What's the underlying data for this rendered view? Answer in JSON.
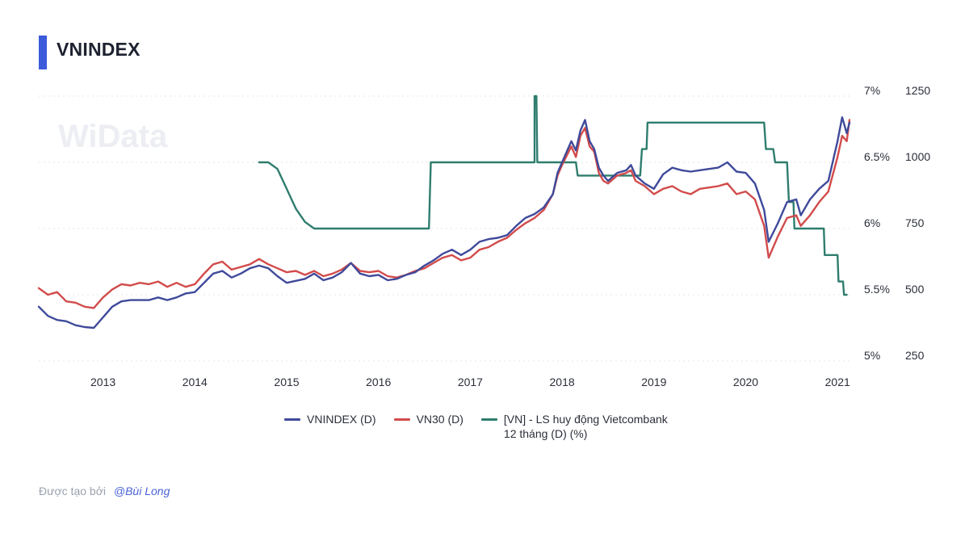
{
  "header": {
    "title": "VNINDEX",
    "accent": "#3b5bdb"
  },
  "watermark": {
    "text": "WiData"
  },
  "footer": {
    "prefix": "Được tạo bởi",
    "author": "@Bùi Long"
  },
  "chart_data": {
    "type": "line",
    "title": "VNINDEX",
    "x_ticks": [
      "2013",
      "2014",
      "2015",
      "2016",
      "2017",
      "2018",
      "2019",
      "2020",
      "2021"
    ],
    "x_range": [
      2012.3,
      2021.13
    ],
    "y_left_axis": {
      "ticks": [
        "7%",
        "6.5%",
        "6%",
        "5.5%",
        "5%"
      ],
      "range": [
        5,
        7
      ]
    },
    "y_right_axis": {
      "ticks": [
        "1250",
        "1000",
        "750",
        "500",
        "250"
      ],
      "range": [
        250,
        1250
      ]
    },
    "grid": "horizontal-dashed",
    "legend_position": "bottom",
    "series": [
      {
        "name": "VNINDEX (D)",
        "axis": "right",
        "color": "#3f4a9a",
        "points": [
          [
            2012.3,
            455
          ],
          [
            2012.4,
            420
          ],
          [
            2012.5,
            405
          ],
          [
            2012.6,
            400
          ],
          [
            2012.7,
            385
          ],
          [
            2012.8,
            378
          ],
          [
            2012.9,
            375
          ],
          [
            2013.0,
            415
          ],
          [
            2013.1,
            455
          ],
          [
            2013.2,
            475
          ],
          [
            2013.3,
            480
          ],
          [
            2013.5,
            480
          ],
          [
            2013.6,
            490
          ],
          [
            2013.7,
            480
          ],
          [
            2013.8,
            490
          ],
          [
            2013.9,
            505
          ],
          [
            2014.0,
            510
          ],
          [
            2014.1,
            545
          ],
          [
            2014.2,
            580
          ],
          [
            2014.3,
            590
          ],
          [
            2014.4,
            565
          ],
          [
            2014.5,
            580
          ],
          [
            2014.6,
            600
          ],
          [
            2014.7,
            610
          ],
          [
            2014.8,
            600
          ],
          [
            2014.9,
            570
          ],
          [
            2015.0,
            545
          ],
          [
            2015.2,
            560
          ],
          [
            2015.3,
            580
          ],
          [
            2015.4,
            555
          ],
          [
            2015.5,
            565
          ],
          [
            2015.6,
            585
          ],
          [
            2015.7,
            620
          ],
          [
            2015.8,
            580
          ],
          [
            2015.9,
            570
          ],
          [
            2016.0,
            575
          ],
          [
            2016.1,
            555
          ],
          [
            2016.2,
            560
          ],
          [
            2016.3,
            575
          ],
          [
            2016.4,
            585
          ],
          [
            2016.5,
            610
          ],
          [
            2016.6,
            630
          ],
          [
            2016.7,
            655
          ],
          [
            2016.8,
            670
          ],
          [
            2016.9,
            650
          ],
          [
            2017.0,
            670
          ],
          [
            2017.1,
            700
          ],
          [
            2017.2,
            710
          ],
          [
            2017.3,
            715
          ],
          [
            2017.4,
            725
          ],
          [
            2017.5,
            760
          ],
          [
            2017.6,
            790
          ],
          [
            2017.7,
            805
          ],
          [
            2017.8,
            830
          ],
          [
            2017.9,
            880
          ],
          [
            2017.95,
            960
          ],
          [
            2018.0,
            1000
          ],
          [
            2018.1,
            1080
          ],
          [
            2018.15,
            1045
          ],
          [
            2018.2,
            1120
          ],
          [
            2018.25,
            1160
          ],
          [
            2018.3,
            1080
          ],
          [
            2018.35,
            1050
          ],
          [
            2018.4,
            980
          ],
          [
            2018.45,
            950
          ],
          [
            2018.5,
            930
          ],
          [
            2018.6,
            960
          ],
          [
            2018.7,
            970
          ],
          [
            2018.75,
            990
          ],
          [
            2018.8,
            950
          ],
          [
            2018.9,
            920
          ],
          [
            2019.0,
            900
          ],
          [
            2019.1,
            955
          ],
          [
            2019.2,
            980
          ],
          [
            2019.3,
            970
          ],
          [
            2019.4,
            965
          ],
          [
            2019.5,
            970
          ],
          [
            2019.6,
            975
          ],
          [
            2019.7,
            980
          ],
          [
            2019.8,
            1000
          ],
          [
            2019.9,
            965
          ],
          [
            2020.0,
            960
          ],
          [
            2020.1,
            920
          ],
          [
            2020.2,
            820
          ],
          [
            2020.25,
            700
          ],
          [
            2020.35,
            770
          ],
          [
            2020.45,
            850
          ],
          [
            2020.55,
            860
          ],
          [
            2020.6,
            800
          ],
          [
            2020.7,
            860
          ],
          [
            2020.8,
            900
          ],
          [
            2020.9,
            930
          ],
          [
            2021.0,
            1080
          ],
          [
            2021.05,
            1170
          ],
          [
            2021.1,
            1110
          ],
          [
            2021.13,
            1150
          ]
        ]
      },
      {
        "name": "VN30 (D)",
        "axis": "right",
        "color": "#d24b4b",
        "points": [
          [
            2012.3,
            525
          ],
          [
            2012.4,
            500
          ],
          [
            2012.5,
            510
          ],
          [
            2012.6,
            475
          ],
          [
            2012.7,
            470
          ],
          [
            2012.8,
            455
          ],
          [
            2012.9,
            450
          ],
          [
            2013.0,
            490
          ],
          [
            2013.1,
            520
          ],
          [
            2013.2,
            540
          ],
          [
            2013.3,
            535
          ],
          [
            2013.4,
            545
          ],
          [
            2013.5,
            540
          ],
          [
            2013.6,
            550
          ],
          [
            2013.7,
            530
          ],
          [
            2013.8,
            545
          ],
          [
            2013.9,
            530
          ],
          [
            2014.0,
            540
          ],
          [
            2014.1,
            580
          ],
          [
            2014.2,
            615
          ],
          [
            2014.3,
            625
          ],
          [
            2014.4,
            595
          ],
          [
            2014.5,
            605
          ],
          [
            2014.6,
            615
          ],
          [
            2014.7,
            635
          ],
          [
            2014.8,
            615
          ],
          [
            2014.9,
            600
          ],
          [
            2015.0,
            585
          ],
          [
            2015.1,
            590
          ],
          [
            2015.2,
            575
          ],
          [
            2015.3,
            590
          ],
          [
            2015.4,
            570
          ],
          [
            2015.5,
            580
          ],
          [
            2015.6,
            595
          ],
          [
            2015.7,
            620
          ],
          [
            2015.8,
            590
          ],
          [
            2015.9,
            585
          ],
          [
            2016.0,
            590
          ],
          [
            2016.1,
            570
          ],
          [
            2016.2,
            565
          ],
          [
            2016.3,
            575
          ],
          [
            2016.4,
            590
          ],
          [
            2016.5,
            600
          ],
          [
            2016.6,
            620
          ],
          [
            2016.7,
            640
          ],
          [
            2016.8,
            650
          ],
          [
            2016.9,
            630
          ],
          [
            2017.0,
            640
          ],
          [
            2017.1,
            670
          ],
          [
            2017.2,
            680
          ],
          [
            2017.3,
            700
          ],
          [
            2017.4,
            715
          ],
          [
            2017.5,
            745
          ],
          [
            2017.6,
            770
          ],
          [
            2017.7,
            790
          ],
          [
            2017.8,
            820
          ],
          [
            2017.9,
            880
          ],
          [
            2017.95,
            950
          ],
          [
            2018.0,
            990
          ],
          [
            2018.1,
            1060
          ],
          [
            2018.15,
            1020
          ],
          [
            2018.2,
            1100
          ],
          [
            2018.25,
            1130
          ],
          [
            2018.3,
            1060
          ],
          [
            2018.35,
            1040
          ],
          [
            2018.4,
            960
          ],
          [
            2018.45,
            930
          ],
          [
            2018.5,
            920
          ],
          [
            2018.6,
            950
          ],
          [
            2018.7,
            960
          ],
          [
            2018.75,
            970
          ],
          [
            2018.8,
            930
          ],
          [
            2018.9,
            910
          ],
          [
            2019.0,
            880
          ],
          [
            2019.1,
            900
          ],
          [
            2019.2,
            910
          ],
          [
            2019.3,
            890
          ],
          [
            2019.4,
            880
          ],
          [
            2019.5,
            900
          ],
          [
            2019.6,
            905
          ],
          [
            2019.7,
            910
          ],
          [
            2019.8,
            920
          ],
          [
            2019.9,
            880
          ],
          [
            2020.0,
            890
          ],
          [
            2020.1,
            860
          ],
          [
            2020.2,
            760
          ],
          [
            2020.25,
            640
          ],
          [
            2020.35,
            720
          ],
          [
            2020.45,
            790
          ],
          [
            2020.55,
            800
          ],
          [
            2020.6,
            760
          ],
          [
            2020.7,
            800
          ],
          [
            2020.8,
            850
          ],
          [
            2020.9,
            890
          ],
          [
            2021.0,
            1020
          ],
          [
            2021.05,
            1100
          ],
          [
            2021.1,
            1080
          ],
          [
            2021.13,
            1160
          ]
        ]
      },
      {
        "name": "[VN] - LS huy động Vietcombank 12 tháng (D) (%)",
        "axis": "left",
        "color": "#2f7d6e",
        "points": [
          [
            2014.7,
            6.5
          ],
          [
            2014.8,
            6.5
          ],
          [
            2014.9,
            6.45
          ],
          [
            2015.0,
            6.3
          ],
          [
            2015.1,
            6.15
          ],
          [
            2015.2,
            6.05
          ],
          [
            2015.3,
            6.0
          ],
          [
            2016.5,
            6.0
          ],
          [
            2016.55,
            6.0
          ],
          [
            2016.57,
            6.5
          ],
          [
            2017.7,
            6.5
          ],
          [
            2017.7,
            7.0
          ],
          [
            2017.72,
            7.0
          ],
          [
            2017.73,
            6.5
          ],
          [
            2018.15,
            6.5
          ],
          [
            2018.17,
            6.4
          ],
          [
            2018.85,
            6.4
          ],
          [
            2018.87,
            6.6
          ],
          [
            2018.92,
            6.6
          ],
          [
            2018.93,
            6.8
          ],
          [
            2020.2,
            6.8
          ],
          [
            2020.22,
            6.6
          ],
          [
            2020.3,
            6.6
          ],
          [
            2020.32,
            6.5
          ],
          [
            2020.45,
            6.5
          ],
          [
            2020.47,
            6.2
          ],
          [
            2020.52,
            6.2
          ],
          [
            2020.53,
            6.0
          ],
          [
            2020.85,
            6.0
          ],
          [
            2020.86,
            5.8
          ],
          [
            2021.0,
            5.8
          ],
          [
            2021.01,
            5.6
          ],
          [
            2021.06,
            5.6
          ],
          [
            2021.07,
            5.5
          ],
          [
            2021.1,
            5.5
          ]
        ]
      }
    ]
  }
}
